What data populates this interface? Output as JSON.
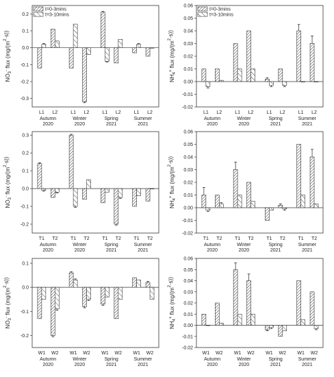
{
  "legend": {
    "items": [
      {
        "label": "t=0-3mins",
        "pattern": "hatch-dense"
      },
      {
        "label": "t=3-10mins",
        "pattern": "hatch-sparse"
      }
    ]
  },
  "chart_data": [
    {
      "id": "no3-L",
      "type": "bar",
      "ylabel_main": "NO",
      "ylabel_sub": "3",
      "ylabel_sup": "-",
      "ylabel_rest": " flux (mg/(m",
      "ylabel_sup2": "2",
      "ylabel_end": "·s))",
      "ylim": [
        -0.35,
        0.25
      ],
      "yticks": [
        0.2,
        0.1,
        0.0,
        -0.1,
        -0.2,
        -0.3
      ],
      "yticklabels": [
        "0.2",
        "0.1",
        "0.0",
        "-0.1",
        "-0.2",
        "-0.3"
      ],
      "categories": [
        "L1",
        "L2",
        "L1",
        "L2",
        "L1",
        "L2",
        "L1",
        "L2"
      ],
      "groups": [
        [
          "Autumn",
          "2020"
        ],
        [
          "Winter",
          "2020"
        ],
        [
          "Spring",
          "2021"
        ],
        [
          "Summer",
          "2021"
        ]
      ],
      "series": [
        {
          "name": "t=0-3mins",
          "values": [
            -0.12,
            0.11,
            -0.12,
            -0.32,
            0.21,
            -0.09,
            -0.03,
            -0.05
          ]
        },
        {
          "name": "t=3-10mins",
          "values": [
            0.02,
            0.04,
            0.14,
            -0.04,
            -0.08,
            0.05,
            0.02,
            0.0
          ]
        }
      ],
      "errors": [
        [
          0,
          0,
          0,
          0.005,
          0.005,
          0,
          0,
          0
        ],
        [
          0.005,
          0,
          0,
          0,
          0.005,
          0,
          0.005,
          0
        ]
      ],
      "legend": "top-left"
    },
    {
      "id": "nh4-L",
      "type": "bar",
      "ylabel_main": "NH",
      "ylabel_sub": "4",
      "ylabel_sup": "+",
      "ylabel_rest": " flux (mg/(m",
      "ylabel_sup2": "2",
      "ylabel_end": "·s))",
      "ylim": [
        -0.02,
        0.06
      ],
      "yticks": [
        0.06,
        0.05,
        0.04,
        0.03,
        0.02,
        0.01,
        0.0,
        -0.01,
        -0.02
      ],
      "yticklabels": [
        "0.06",
        "0.05",
        "0.04",
        "0.03",
        "0.02",
        "0.01",
        "0.00",
        "-0.01",
        "-0.02"
      ],
      "categories": [
        "L1",
        "L2",
        "L1",
        "L2",
        "L1",
        "L2",
        "L1",
        "L2"
      ],
      "groups": [
        [
          "Autumn",
          "2020"
        ],
        [
          "Winter",
          "2020"
        ],
        [
          "Spring",
          "2021"
        ],
        [
          "Summer",
          "2021"
        ]
      ],
      "series": [
        {
          "name": "t=0-3mins",
          "values": [
            0.01,
            0.01,
            0.03,
            0.04,
            0.002,
            0.01,
            0.04,
            0.03
          ]
        },
        {
          "name": "t=3-10mins",
          "values": [
            -0.004,
            0.001,
            0.01,
            0.01,
            -0.003,
            -0.003,
            0.0,
            0.0
          ]
        }
      ],
      "errors": [
        [
          0,
          0,
          0,
          0,
          0.001,
          0,
          0.005,
          0.006
        ],
        [
          0.001,
          0,
          0,
          0,
          0.001,
          0.001,
          0,
          0
        ]
      ],
      "legend": "top-left"
    },
    {
      "id": "no3-T",
      "type": "bar",
      "ylabel_main": "NO",
      "ylabel_sub": "3",
      "ylabel_sup": "-",
      "ylabel_rest": " flux (mg/(m",
      "ylabel_sup2": "2",
      "ylabel_end": "·s))",
      "ylim": [
        -0.25,
        0.32
      ],
      "yticks": [
        0.3,
        0.2,
        0.1,
        0.0,
        -0.1,
        -0.2
      ],
      "yticklabels": [
        "0.3",
        "0.2",
        "0.1",
        "0.0",
        "-0.1",
        "-0.2"
      ],
      "categories": [
        "T1",
        "T2",
        "T1",
        "T2",
        "T1",
        "T2",
        "T1",
        "T2"
      ],
      "groups": [
        [
          "Autumn",
          "2020"
        ],
        [
          "Winter",
          "2020"
        ],
        [
          "Spring",
          "2021"
        ],
        [
          "Summer",
          "2021"
        ]
      ],
      "series": [
        {
          "name": "t=0-3mins",
          "values": [
            0.14,
            -0.05,
            0.3,
            -0.06,
            -0.08,
            -0.2,
            -0.1,
            -0.07
          ]
        },
        {
          "name": "t=3-10mins",
          "values": [
            -0.01,
            -0.02,
            -0.1,
            0.05,
            -0.02,
            -0.05,
            -0.04,
            0.0
          ]
        }
      ],
      "errors": [
        [
          0.005,
          0,
          0.005,
          0,
          0,
          0.005,
          0,
          0
        ],
        [
          0.005,
          0.005,
          0.005,
          0,
          0,
          0.005,
          0,
          0
        ]
      ]
    },
    {
      "id": "nh4-T",
      "type": "bar",
      "ylabel_main": "NH",
      "ylabel_sub": "4",
      "ylabel_sup": "+",
      "ylabel_rest": " flux (mg/(m",
      "ylabel_sup2": "2",
      "ylabel_end": "·s))",
      "ylim": [
        -0.02,
        0.06
      ],
      "yticks": [
        0.06,
        0.05,
        0.04,
        0.03,
        0.02,
        0.01,
        0.0,
        -0.01,
        -0.02
      ],
      "yticklabels": [
        "0.06",
        "0.05",
        "0.04",
        "0.03",
        "0.02",
        "0.01",
        "0.00",
        "-0.01",
        "-0.02"
      ],
      "categories": [
        "T1",
        "T2",
        "T1",
        "T2",
        "T1",
        "T2",
        "T1",
        "T2"
      ],
      "groups": [
        [
          "Autumn",
          "2020"
        ],
        [
          "Winter",
          "2020"
        ],
        [
          "Spring",
          "2021"
        ],
        [
          "Summer",
          "2021"
        ]
      ],
      "series": [
        {
          "name": "t=0-3mins",
          "values": [
            0.01,
            0.01,
            0.03,
            0.02,
            -0.01,
            0.002,
            0.05,
            0.04
          ]
        },
        {
          "name": "t=3-10mins",
          "values": [
            -0.002,
            0.003,
            0.01,
            0.005,
            -0.002,
            -0.001,
            0.01,
            0.003
          ]
        }
      ],
      "errors": [
        [
          0.006,
          0,
          0.006,
          0,
          0,
          0.001,
          0,
          0.006
        ],
        [
          0.001,
          0.001,
          0,
          0,
          0,
          0.001,
          0,
          0
        ]
      ]
    },
    {
      "id": "no3-W",
      "type": "bar",
      "ylabel_main": "NO",
      "ylabel_sub": "3",
      "ylabel_sup": "-",
      "ylabel_rest": " flux (mg/(m",
      "ylabel_sup2": "2",
      "ylabel_end": "·s))",
      "ylim": [
        -0.25,
        0.12
      ],
      "yticks": [
        0.1,
        0.0,
        -0.1,
        -0.2
      ],
      "yticklabels": [
        "0.1",
        "0.0",
        "-0.1",
        "-0.2"
      ],
      "categories": [
        "W1",
        "W2",
        "W1",
        "W2",
        "W1",
        "W2",
        "W1",
        "W2"
      ],
      "groups": [
        [
          "Autumn",
          "2020"
        ],
        [
          "Winter",
          "2020"
        ],
        [
          "Spring",
          "2021"
        ],
        [
          "Summer",
          "2021"
        ]
      ],
      "series": [
        {
          "name": "t=0-3mins",
          "values": [
            -0.13,
            -0.2,
            0.06,
            -0.08,
            -0.07,
            -0.13,
            0.04,
            0.02
          ]
        },
        {
          "name": "t=3-10mins",
          "values": [
            -0.05,
            -0.09,
            0.03,
            -0.05,
            -0.04,
            -0.05,
            0.03,
            -0.05
          ]
        }
      ],
      "errors": [
        [
          0,
          0.005,
          0.005,
          0.005,
          0.005,
          0,
          0,
          0.005
        ],
        [
          0,
          0.005,
          0.005,
          0.005,
          0,
          0,
          0,
          0
        ]
      ]
    },
    {
      "id": "nh4-W",
      "type": "bar",
      "ylabel_main": "NH",
      "ylabel_sub": "4",
      "ylabel_sup": "+",
      "ylabel_rest": " flux (mg/(m",
      "ylabel_sup2": "2",
      "ylabel_end": "·s))",
      "ylim": [
        -0.02,
        0.06
      ],
      "yticks": [
        0.06,
        0.05,
        0.04,
        0.03,
        0.02,
        0.01,
        0.0,
        -0.01,
        -0.02
      ],
      "yticklabels": [
        "0.06",
        "0.05",
        "0.04",
        "0.03",
        "0.02",
        "0.01",
        "0.00",
        "-0.01",
        "-0.02"
      ],
      "categories": [
        "W1",
        "W2",
        "W1",
        "W2",
        "W1",
        "W2",
        "W1",
        "W2"
      ],
      "groups": [
        [
          "Autumn",
          "2020"
        ],
        [
          "Winter",
          "2020"
        ],
        [
          "Spring",
          "2021"
        ],
        [
          "Summer",
          "2021"
        ]
      ],
      "series": [
        {
          "name": "t=0-3mins",
          "values": [
            0.01,
            0.02,
            0.05,
            0.04,
            -0.004,
            -0.01,
            0.04,
            0.03
          ]
        },
        {
          "name": "t=3-10mins",
          "values": [
            0.0,
            0.002,
            0.01,
            0.01,
            -0.002,
            -0.005,
            0.005,
            -0.003
          ]
        }
      ],
      "errors": [
        [
          0,
          0,
          0.006,
          0.006,
          0.001,
          0,
          0,
          0
        ],
        [
          0,
          0,
          0,
          0,
          0.001,
          0,
          0,
          0.001
        ]
      ]
    }
  ]
}
